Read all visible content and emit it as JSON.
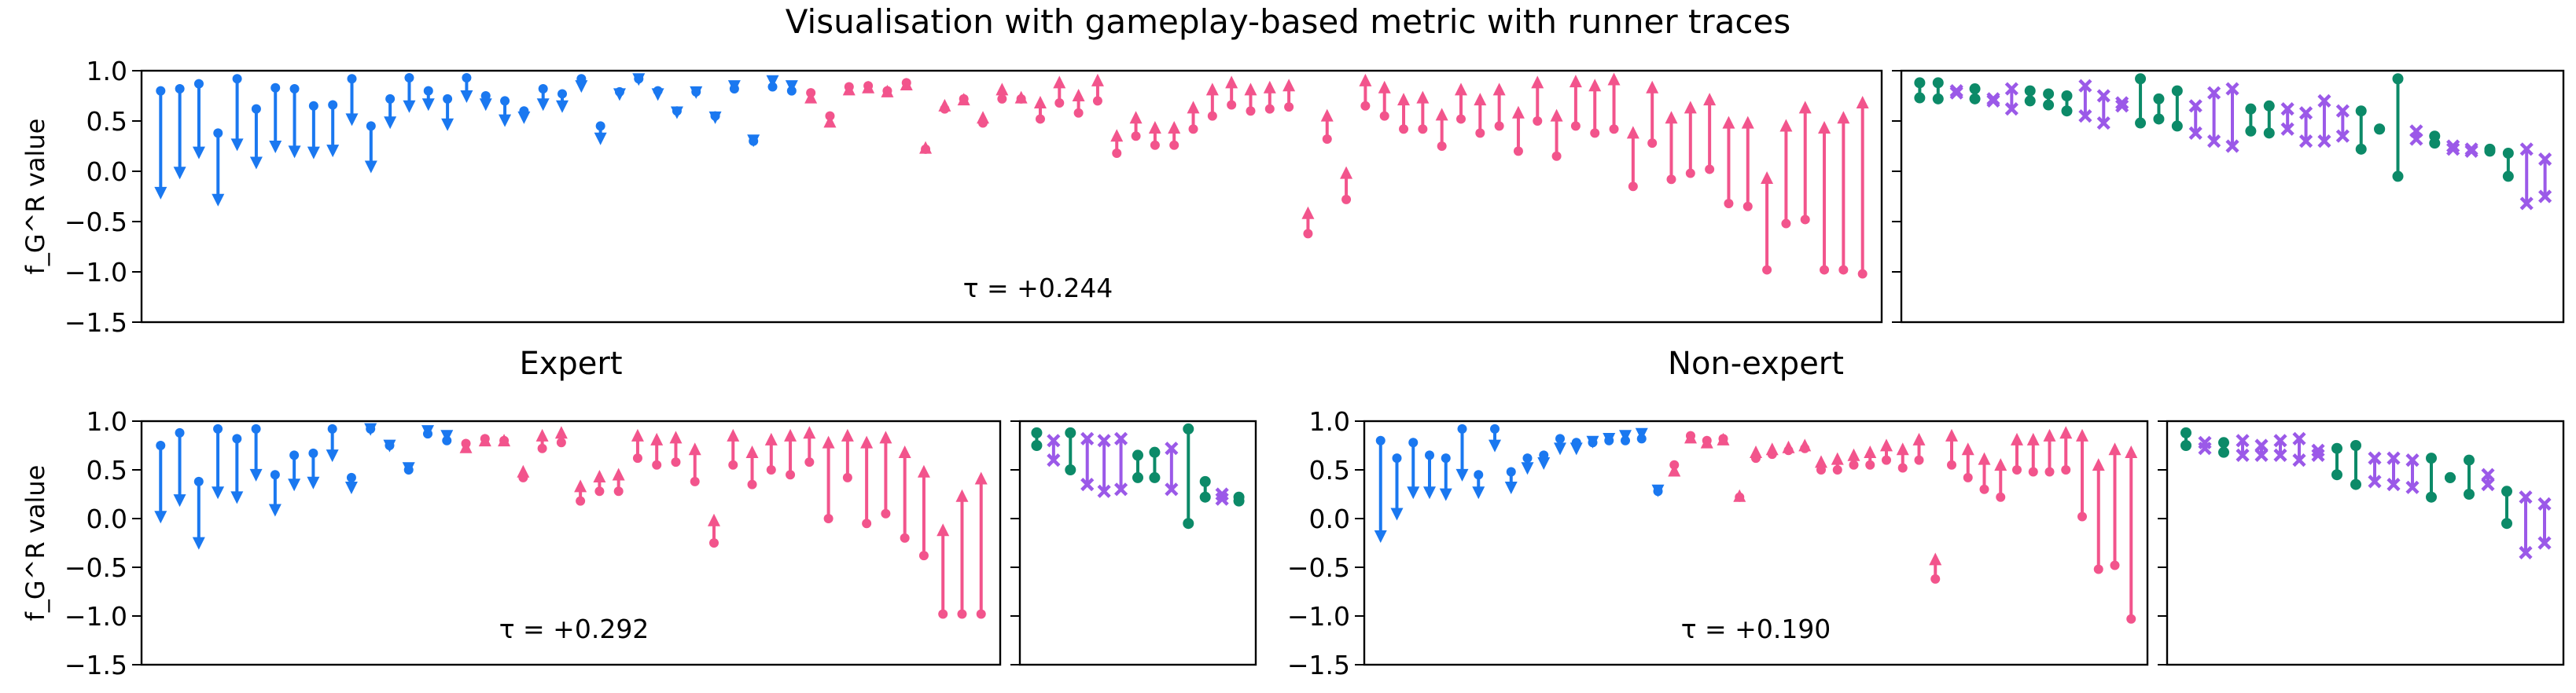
{
  "figure_title": "Visualisation with gameplay-based metric with runner traces",
  "ylabel": "f_G^R value",
  "colors": {
    "down": "#1a78f0",
    "up": "#f2548c",
    "green": "#0c8a68",
    "purple": "#9b59e8"
  },
  "chart_data": [
    {
      "id": "overall",
      "type": "dumbbell",
      "title": "",
      "annotation": "τ = +0.244",
      "xlabel": "",
      "ylim": [
        -1.5,
        1.0
      ],
      "yticks": [
        "1.0",
        "0.5",
        "0.0",
        "−0.5",
        "−1.0",
        "−1.5"
      ],
      "grid": false,
      "main": [
        {
          "from": 0.8,
          "to": -0.28
        },
        {
          "from": 0.82,
          "to": -0.08
        },
        {
          "from": 0.87,
          "to": 0.12
        },
        {
          "from": 0.38,
          "to": -0.35
        },
        {
          "from": 0.92,
          "to": 0.2
        },
        {
          "from": 0.62,
          "to": 0.02
        },
        {
          "from": 0.83,
          "to": 0.18
        },
        {
          "from": 0.82,
          "to": 0.13
        },
        {
          "from": 0.65,
          "to": 0.12
        },
        {
          "from": 0.66,
          "to": 0.14
        },
        {
          "from": 0.92,
          "to": 0.45
        },
        {
          "from": 0.45,
          "to": -0.02
        },
        {
          "from": 0.72,
          "to": 0.42
        },
        {
          "from": 0.93,
          "to": 0.58
        },
        {
          "from": 0.8,
          "to": 0.6
        },
        {
          "from": 0.72,
          "to": 0.4
        },
        {
          "from": 0.93,
          "to": 0.68
        },
        {
          "from": 0.75,
          "to": 0.6
        },
        {
          "from": 0.7,
          "to": 0.44
        },
        {
          "from": 0.6,
          "to": 0.47
        },
        {
          "from": 0.82,
          "to": 0.6
        },
        {
          "from": 0.77,
          "to": 0.58
        },
        {
          "from": 0.92,
          "to": 0.78
        },
        {
          "from": 0.45,
          "to": 0.26
        },
        {
          "from": 0.79,
          "to": 0.7
        },
        {
          "from": 0.92,
          "to": 0.85
        },
        {
          "from": 0.8,
          "to": 0.7
        },
        {
          "from": 0.6,
          "to": 0.52
        },
        {
          "from": 0.79,
          "to": 0.72
        },
        {
          "from": 0.55,
          "to": 0.47
        },
        {
          "from": 0.82,
          "to": 0.78
        },
        {
          "from": 0.3,
          "to": 0.24
        },
        {
          "from": 0.84,
          "to": 0.83
        },
        {
          "from": 0.8,
          "to": 0.78
        },
        {
          "from": 0.78,
          "to": 0.8
        },
        {
          "from": 0.55,
          "to": 0.56
        },
        {
          "from": 0.84,
          "to": 0.88
        },
        {
          "from": 0.85,
          "to": 0.9
        },
        {
          "from": 0.8,
          "to": 0.86
        },
        {
          "from": 0.88,
          "to": 0.93
        },
        {
          "from": 0.22,
          "to": 0.3
        },
        {
          "from": 0.62,
          "to": 0.72
        },
        {
          "from": 0.72,
          "to": 0.78
        },
        {
          "from": 0.48,
          "to": 0.6
        },
        {
          "from": 0.72,
          "to": 0.88
        },
        {
          "from": 0.72,
          "to": 0.8
        },
        {
          "from": 0.52,
          "to": 0.75
        },
        {
          "from": 0.68,
          "to": 0.95
        },
        {
          "from": 0.58,
          "to": 0.82
        },
        {
          "from": 0.7,
          "to": 0.97
        },
        {
          "from": 0.18,
          "to": 0.42
        },
        {
          "from": 0.35,
          "to": 0.6
        },
        {
          "from": 0.26,
          "to": 0.5
        },
        {
          "from": 0.26,
          "to": 0.5
        },
        {
          "from": 0.42,
          "to": 0.7
        },
        {
          "from": 0.55,
          "to": 0.88
        },
        {
          "from": 0.66,
          "to": 0.95
        },
        {
          "from": 0.6,
          "to": 0.88
        },
        {
          "from": 0.62,
          "to": 0.9
        },
        {
          "from": 0.64,
          "to": 0.92
        },
        {
          "from": -0.62,
          "to": -0.35
        },
        {
          "from": 0.32,
          "to": 0.62
        },
        {
          "from": -0.28,
          "to": 0.05
        },
        {
          "from": 0.65,
          "to": 0.97
        },
        {
          "from": 0.55,
          "to": 0.9
        },
        {
          "from": 0.42,
          "to": 0.78
        },
        {
          "from": 0.42,
          "to": 0.8
        },
        {
          "from": 0.25,
          "to": 0.63
        },
        {
          "from": 0.52,
          "to": 0.88
        },
        {
          "from": 0.38,
          "to": 0.78
        },
        {
          "from": 0.45,
          "to": 0.88
        },
        {
          "from": 0.2,
          "to": 0.65
        },
        {
          "from": 0.5,
          "to": 0.95
        },
        {
          "from": 0.15,
          "to": 0.62
        },
        {
          "from": 0.45,
          "to": 0.96
        },
        {
          "from": 0.38,
          "to": 0.92
        },
        {
          "from": 0.42,
          "to": 0.98
        },
        {
          "from": -0.15,
          "to": 0.45
        },
        {
          "from": 0.28,
          "to": 0.9
        },
        {
          "from": -0.08,
          "to": 0.6
        },
        {
          "from": -0.02,
          "to": 0.7
        },
        {
          "from": 0.02,
          "to": 0.78
        },
        {
          "from": -0.32,
          "to": 0.55
        },
        {
          "from": -0.35,
          "to": 0.55
        },
        {
          "from": -0.98,
          "to": 0.0
        },
        {
          "from": -0.52,
          "to": 0.52
        },
        {
          "from": -0.48,
          "to": 0.7
        },
        {
          "from": -0.98,
          "to": 0.5
        },
        {
          "from": -0.98,
          "to": 0.6
        },
        {
          "from": -1.02,
          "to": 0.75
        }
      ],
      "side": [
        {
          "a": 0.88,
          "b": 0.73,
          "m": "o"
        },
        {
          "a": 0.88,
          "b": 0.72,
          "m": "o"
        },
        {
          "a": 0.78,
          "b": 0.8,
          "m": "x"
        },
        {
          "a": 0.82,
          "b": 0.72,
          "m": "o"
        },
        {
          "a": 0.7,
          "b": 0.72,
          "m": "x"
        },
        {
          "a": 0.82,
          "b": 0.62,
          "m": "x"
        },
        {
          "a": 0.8,
          "b": 0.7,
          "m": "o"
        },
        {
          "a": 0.77,
          "b": 0.66,
          "m": "o"
        },
        {
          "a": 0.75,
          "b": 0.6,
          "m": "o"
        },
        {
          "a": 0.85,
          "b": 0.55,
          "m": "x"
        },
        {
          "a": 0.75,
          "b": 0.48,
          "m": "x"
        },
        {
          "a": 0.68,
          "b": 0.65,
          "m": "x"
        },
        {
          "a": 0.92,
          "b": 0.48,
          "m": "o"
        },
        {
          "a": 0.72,
          "b": 0.52,
          "m": "o"
        },
        {
          "a": 0.8,
          "b": 0.45,
          "m": "o"
        },
        {
          "a": 0.65,
          "b": 0.38,
          "m": "x"
        },
        {
          "a": 0.78,
          "b": 0.3,
          "m": "x"
        },
        {
          "a": 0.82,
          "b": 0.25,
          "m": "x"
        },
        {
          "a": 0.62,
          "b": 0.4,
          "m": "o"
        },
        {
          "a": 0.65,
          "b": 0.38,
          "m": "o"
        },
        {
          "a": 0.62,
          "b": 0.42,
          "m": "x"
        },
        {
          "a": 0.58,
          "b": 0.3,
          "m": "x"
        },
        {
          "a": 0.7,
          "b": 0.3,
          "m": "x"
        },
        {
          "a": 0.6,
          "b": 0.35,
          "m": "x"
        },
        {
          "a": 0.6,
          "b": 0.22,
          "m": "o"
        },
        {
          "a": 0.42,
          "b": 0.42,
          "m": "o"
        },
        {
          "a": 0.92,
          "b": -0.05,
          "m": "o"
        },
        {
          "a": 0.4,
          "b": 0.32,
          "m": "x"
        },
        {
          "a": 0.35,
          "b": 0.28,
          "m": "o"
        },
        {
          "a": 0.25,
          "b": 0.22,
          "m": "x"
        },
        {
          "a": 0.22,
          "b": 0.2,
          "m": "x"
        },
        {
          "a": 0.22,
          "b": 0.2,
          "m": "o"
        },
        {
          "a": 0.18,
          "b": -0.05,
          "m": "o"
        },
        {
          "a": 0.22,
          "b": -0.32,
          "m": "x"
        },
        {
          "a": 0.12,
          "b": -0.25,
          "m": "x"
        }
      ]
    },
    {
      "id": "expert",
      "type": "dumbbell",
      "title": "Expert",
      "annotation": "τ = +0.292",
      "xlabel": "",
      "ylim": [
        -1.5,
        1.0
      ],
      "yticks": [
        "1.0",
        "0.5",
        "0.0",
        "−0.5",
        "−1.0",
        "−1.5"
      ],
      "grid": false,
      "main": [
        {
          "from": 0.75,
          "to": -0.05
        },
        {
          "from": 0.88,
          "to": 0.12
        },
        {
          "from": 0.38,
          "to": -0.32
        },
        {
          "from": 0.92,
          "to": 0.2
        },
        {
          "from": 0.82,
          "to": 0.15
        },
        {
          "from": 0.92,
          "to": 0.38
        },
        {
          "from": 0.45,
          "to": 0.02
        },
        {
          "from": 0.65,
          "to": 0.28
        },
        {
          "from": 0.67,
          "to": 0.3
        },
        {
          "from": 0.92,
          "to": 0.58
        },
        {
          "from": 0.42,
          "to": 0.25
        },
        {
          "from": 0.92,
          "to": 0.85
        },
        {
          "from": 0.75,
          "to": 0.68
        },
        {
          "from": 0.5,
          "to": 0.45
        },
        {
          "from": 0.87,
          "to": 0.83
        },
        {
          "from": 0.8,
          "to": 0.78
        },
        {
          "from": 0.77,
          "to": 0.8
        },
        {
          "from": 0.82,
          "to": 0.87
        },
        {
          "from": 0.8,
          "to": 0.87
        },
        {
          "from": 0.42,
          "to": 0.55
        },
        {
          "from": 0.72,
          "to": 0.92
        },
        {
          "from": 0.78,
          "to": 0.95
        },
        {
          "from": 0.18,
          "to": 0.4
        },
        {
          "from": 0.28,
          "to": 0.5
        },
        {
          "from": 0.28,
          "to": 0.52
        },
        {
          "from": 0.62,
          "to": 0.92
        },
        {
          "from": 0.55,
          "to": 0.88
        },
        {
          "from": 0.58,
          "to": 0.9
        },
        {
          "from": 0.38,
          "to": 0.78
        },
        {
          "from": -0.25,
          "to": 0.05
        },
        {
          "from": 0.55,
          "to": 0.92
        },
        {
          "from": 0.35,
          "to": 0.75
        },
        {
          "from": 0.5,
          "to": 0.88
        },
        {
          "from": 0.45,
          "to": 0.92
        },
        {
          "from": 0.58,
          "to": 0.95
        },
        {
          "from": 0.0,
          "to": 0.85
        },
        {
          "from": 0.42,
          "to": 0.92
        },
        {
          "from": -0.05,
          "to": 0.85
        },
        {
          "from": 0.05,
          "to": 0.9
        },
        {
          "from": -0.2,
          "to": 0.75
        },
        {
          "from": -0.38,
          "to": 0.55
        },
        {
          "from": -0.98,
          "to": -0.05
        },
        {
          "from": -0.98,
          "to": 0.3
        },
        {
          "from": -0.98,
          "to": 0.48
        }
      ],
      "side": [
        {
          "a": 0.88,
          "b": 0.75,
          "m": "o"
        },
        {
          "a": 0.8,
          "b": 0.6,
          "m": "x"
        },
        {
          "a": 0.88,
          "b": 0.5,
          "m": "o"
        },
        {
          "a": 0.82,
          "b": 0.35,
          "m": "x"
        },
        {
          "a": 0.8,
          "b": 0.28,
          "m": "x"
        },
        {
          "a": 0.82,
          "b": 0.3,
          "m": "x"
        },
        {
          "a": 0.65,
          "b": 0.42,
          "m": "o"
        },
        {
          "a": 0.68,
          "b": 0.42,
          "m": "o"
        },
        {
          "a": 0.72,
          "b": 0.3,
          "m": "x"
        },
        {
          "a": 0.92,
          "b": -0.05,
          "m": "o"
        },
        {
          "a": 0.38,
          "b": 0.22,
          "m": "o"
        },
        {
          "a": 0.25,
          "b": 0.2,
          "m": "x"
        },
        {
          "a": 0.22,
          "b": 0.18,
          "m": "o"
        }
      ]
    },
    {
      "id": "non-expert",
      "type": "dumbbell",
      "title": "Non-expert",
      "annotation": "τ = +0.190",
      "xlabel": "",
      "ylim": [
        -1.5,
        1.0
      ],
      "yticks": [
        "1.0",
        "0.5",
        "0.0",
        "−0.5",
        "−1.0",
        "−1.5"
      ],
      "grid": false,
      "main": [
        {
          "from": 0.8,
          "to": -0.25
        },
        {
          "from": 0.62,
          "to": -0.02
        },
        {
          "from": 0.78,
          "to": 0.2
        },
        {
          "from": 0.65,
          "to": 0.2
        },
        {
          "from": 0.62,
          "to": 0.18
        },
        {
          "from": 0.92,
          "to": 0.38
        },
        {
          "from": 0.45,
          "to": 0.2
        },
        {
          "from": 0.92,
          "to": 0.68
        },
        {
          "from": 0.48,
          "to": 0.25
        },
        {
          "from": 0.62,
          "to": 0.45
        },
        {
          "from": 0.65,
          "to": 0.5
        },
        {
          "from": 0.82,
          "to": 0.65
        },
        {
          "from": 0.78,
          "to": 0.65
        },
        {
          "from": 0.78,
          "to": 0.72
        },
        {
          "from": 0.8,
          "to": 0.75
        },
        {
          "from": 0.8,
          "to": 0.78
        },
        {
          "from": 0.82,
          "to": 0.8
        },
        {
          "from": 0.28,
          "to": 0.22
        },
        {
          "from": 0.55,
          "to": 0.56
        },
        {
          "from": 0.85,
          "to": 0.9
        },
        {
          "from": 0.8,
          "to": 0.85
        },
        {
          "from": 0.82,
          "to": 0.88
        },
        {
          "from": 0.22,
          "to": 0.3
        },
        {
          "from": 0.62,
          "to": 0.75
        },
        {
          "from": 0.66,
          "to": 0.78
        },
        {
          "from": 0.7,
          "to": 0.8
        },
        {
          "from": 0.72,
          "to": 0.82
        },
        {
          "from": 0.5,
          "to": 0.65
        },
        {
          "from": 0.5,
          "to": 0.68
        },
        {
          "from": 0.55,
          "to": 0.72
        },
        {
          "from": 0.55,
          "to": 0.75
        },
        {
          "from": 0.6,
          "to": 0.82
        },
        {
          "from": 0.52,
          "to": 0.78
        },
        {
          "from": 0.6,
          "to": 0.88
        },
        {
          "from": -0.62,
          "to": -0.35
        },
        {
          "from": 0.55,
          "to": 0.92
        },
        {
          "from": 0.42,
          "to": 0.78
        },
        {
          "from": 0.3,
          "to": 0.68
        },
        {
          "from": 0.22,
          "to": 0.62
        },
        {
          "from": 0.5,
          "to": 0.88
        },
        {
          "from": 0.48,
          "to": 0.88
        },
        {
          "from": 0.48,
          "to": 0.92
        },
        {
          "from": 0.5,
          "to": 0.95
        },
        {
          "from": 0.02,
          "to": 0.92
        },
        {
          "from": -0.52,
          "to": 0.62
        },
        {
          "from": -0.48,
          "to": 0.78
        },
        {
          "from": -1.03,
          "to": 0.75
        }
      ],
      "side": [
        {
          "a": 0.88,
          "b": 0.75,
          "m": "o"
        },
        {
          "a": 0.78,
          "b": 0.72,
          "m": "x"
        },
        {
          "a": 0.78,
          "b": 0.68,
          "m": "o"
        },
        {
          "a": 0.8,
          "b": 0.65,
          "m": "x"
        },
        {
          "a": 0.75,
          "b": 0.65,
          "m": "x"
        },
        {
          "a": 0.8,
          "b": 0.65,
          "m": "x"
        },
        {
          "a": 0.82,
          "b": 0.6,
          "m": "x"
        },
        {
          "a": 0.7,
          "b": 0.65,
          "m": "x"
        },
        {
          "a": 0.72,
          "b": 0.45,
          "m": "o"
        },
        {
          "a": 0.75,
          "b": 0.35,
          "m": "o"
        },
        {
          "a": 0.62,
          "b": 0.38,
          "m": "x"
        },
        {
          "a": 0.62,
          "b": 0.35,
          "m": "x"
        },
        {
          "a": 0.6,
          "b": 0.32,
          "m": "x"
        },
        {
          "a": 0.62,
          "b": 0.22,
          "m": "o"
        },
        {
          "a": 0.42,
          "b": 0.42,
          "m": "o"
        },
        {
          "a": 0.6,
          "b": 0.25,
          "m": "o"
        },
        {
          "a": 0.45,
          "b": 0.35,
          "m": "x"
        },
        {
          "a": 0.28,
          "b": -0.05,
          "m": "o"
        },
        {
          "a": 0.22,
          "b": -0.35,
          "m": "x"
        },
        {
          "a": 0.15,
          "b": -0.25,
          "m": "x"
        }
      ]
    }
  ]
}
